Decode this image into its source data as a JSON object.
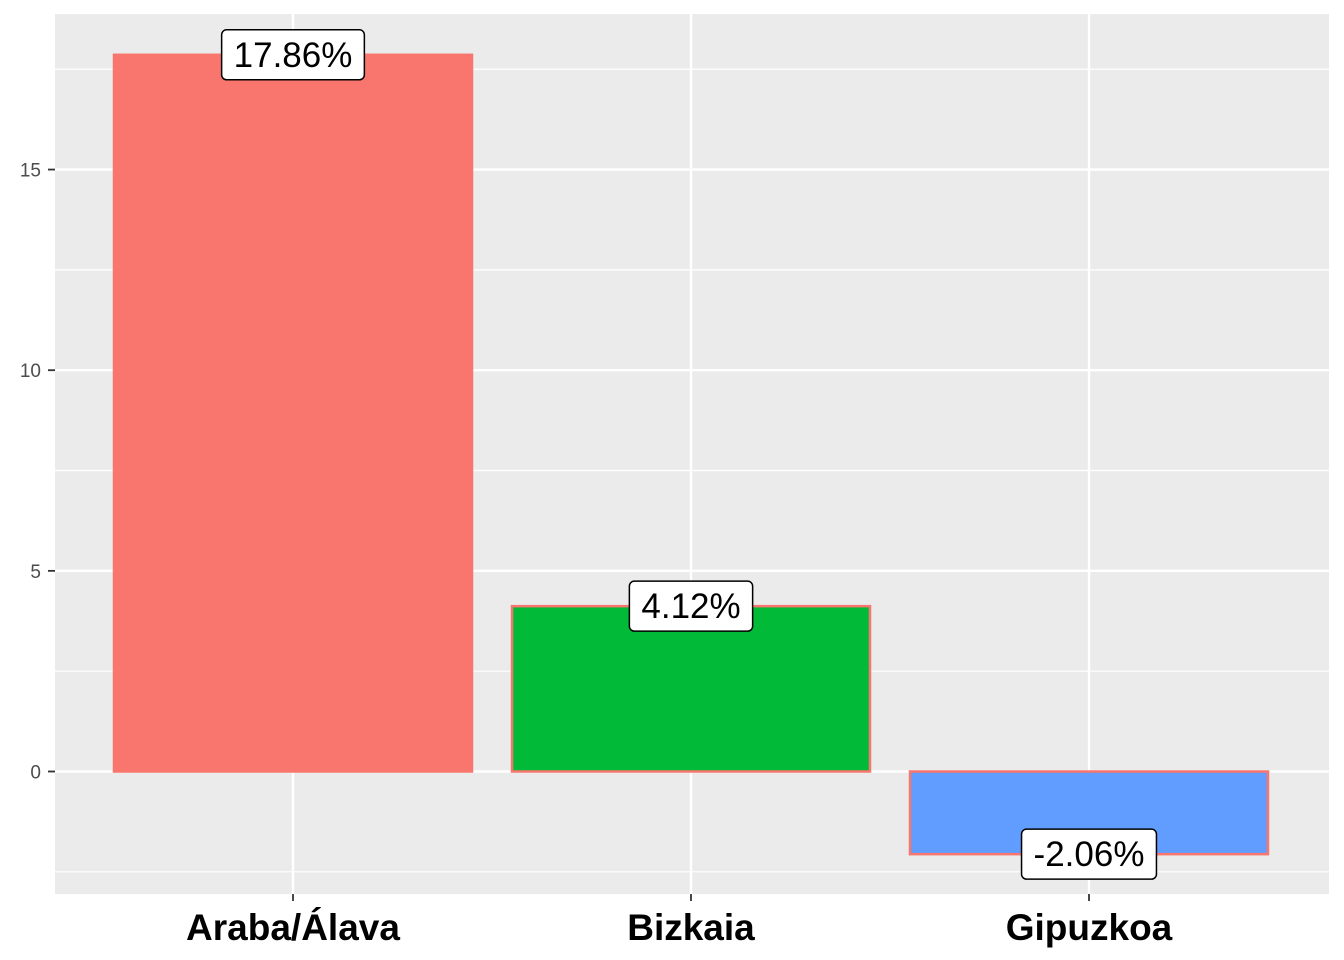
{
  "chart_data": {
    "type": "bar",
    "title": "",
    "xlabel": "",
    "ylabel": "",
    "categories": [
      "Araba/Álava",
      "Bizkaia",
      "Gipuzkoa"
    ],
    "values": [
      17.86,
      4.12,
      -2.06
    ],
    "data_labels": [
      "17.86%",
      "4.12%",
      "-2.06%"
    ],
    "colors": [
      "#F8766D",
      "#00BA38",
      "#619CFF"
    ],
    "bar_outline_color": "#F8766D",
    "ylim": [
      -3,
      19.2
    ],
    "yticks": [
      0,
      5,
      10,
      15
    ],
    "ytick_labels": [
      "0",
      "5",
      "10",
      "15"
    ],
    "grid": true,
    "legend": "none",
    "panel_background": "#EBEBEB"
  }
}
